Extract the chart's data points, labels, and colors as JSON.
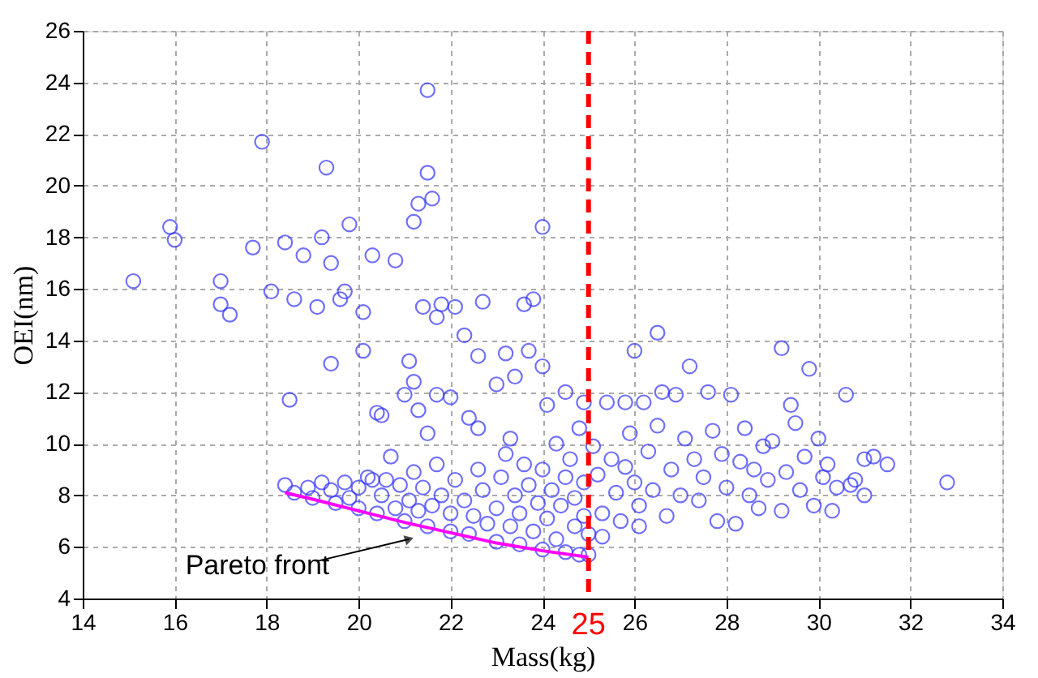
{
  "chart_data": {
    "type": "scatter",
    "xlabel": "Mass(kg)",
    "ylabel": "OEI(nm)",
    "xlim": [
      14,
      34
    ],
    "ylim": [
      4,
      26
    ],
    "xticks": [
      14,
      16,
      18,
      20,
      22,
      24,
      26,
      28,
      30,
      32,
      34
    ],
    "yticks": [
      4,
      6,
      8,
      10,
      12,
      14,
      16,
      18,
      20,
      22,
      24,
      26
    ],
    "grid": true,
    "series": [
      {
        "marker": "circle",
        "color": "#3333ff",
        "x": [
          15.1,
          15.9,
          16.0,
          17.0,
          17.0,
          17.2,
          17.7,
          17.9,
          18.1,
          18.4,
          18.5,
          18.6,
          18.8,
          19.1,
          19.2,
          19.3,
          19.4,
          19.4,
          19.6,
          19.7,
          19.8,
          20.1,
          20.1,
          20.3,
          20.4,
          20.5,
          20.8,
          21.0,
          21.1,
          21.2,
          21.2,
          21.3,
          21.4,
          21.5,
          21.5,
          21.6,
          21.5,
          21.7,
          21.8,
          22.0,
          22.1,
          22.3,
          22.4,
          22.6,
          22.7,
          23.0,
          23.2,
          23.4,
          23.3,
          23.7,
          23.6,
          23.8,
          24.0,
          24.0,
          24.1,
          24.5,
          24.8,
          24.9,
          21.3,
          21.7,
          22.6,
          20.7,
          20.3,
          18.4,
          18.6,
          18.9,
          19.0,
          19.2,
          19.4,
          19.5,
          19.7,
          19.8,
          20.0,
          20.0,
          20.2,
          20.4,
          20.5,
          20.6,
          20.8,
          20.9,
          21.0,
          21.1,
          21.2,
          21.3,
          21.4,
          21.5,
          21.6,
          21.7,
          21.8,
          22.0,
          22.0,
          22.1,
          22.3,
          22.4,
          22.5,
          22.6,
          22.7,
          22.8,
          23.0,
          23.0,
          23.1,
          23.2,
          23.3,
          23.4,
          23.5,
          23.5,
          23.6,
          23.7,
          23.8,
          23.9,
          24.0,
          24.0,
          24.1,
          24.2,
          24.3,
          24.3,
          24.4,
          24.5,
          24.5,
          24.6,
          24.7,
          24.7,
          24.8,
          24.9,
          24.9,
          25.0,
          25.0,
          25.1,
          25.2,
          25.3,
          25.3,
          25.4,
          25.5,
          25.6,
          25.7,
          25.8,
          25.8,
          25.9,
          26.0,
          26.0,
          26.1,
          26.1,
          26.3,
          26.4,
          26.5,
          26.5,
          26.6,
          26.7,
          26.8,
          26.9,
          27.0,
          27.1,
          27.2,
          27.3,
          27.4,
          27.5,
          27.7,
          27.8,
          27.9,
          28.0,
          28.1,
          28.2,
          28.3,
          28.4,
          28.5,
          28.7,
          28.8,
          28.9,
          29.0,
          29.2,
          29.2,
          29.3,
          29.4,
          29.5,
          29.6,
          29.7,
          29.8,
          29.9,
          30.0,
          30.1,
          30.2,
          30.3,
          30.4,
          30.6,
          30.8,
          31.0,
          31.0,
          31.2,
          31.5,
          32.8,
          26.2,
          27.6,
          28.6,
          30.7
        ],
        "values": [
          16.3,
          18.4,
          17.9,
          16.3,
          15.4,
          15.0,
          17.6,
          21.7,
          15.9,
          17.8,
          11.7,
          15.6,
          17.3,
          15.3,
          18.0,
          20.7,
          17.0,
          13.1,
          15.6,
          15.9,
          18.5,
          15.1,
          13.6,
          17.3,
          11.2,
          11.1,
          17.1,
          11.9,
          13.2,
          12.4,
          18.6,
          19.3,
          15.3,
          20.5,
          23.7,
          19.5,
          10.4,
          14.9,
          15.4,
          11.8,
          15.3,
          14.2,
          11.0,
          13.4,
          15.5,
          12.3,
          13.5,
          12.6,
          10.2,
          13.6,
          15.4,
          15.6,
          18.4,
          13.0,
          11.5,
          12.0,
          10.6,
          11.6,
          11.3,
          11.9,
          10.6,
          9.5,
          8.6,
          8.4,
          8.1,
          8.3,
          7.9,
          8.5,
          8.2,
          7.7,
          8.5,
          7.9,
          7.5,
          8.3,
          8.7,
          7.3,
          8.0,
          8.6,
          7.5,
          8.4,
          7.0,
          7.8,
          8.9,
          7.4,
          8.3,
          6.8,
          7.6,
          9.2,
          8.0,
          6.6,
          7.3,
          8.6,
          7.8,
          6.5,
          7.2,
          9.0,
          8.2,
          6.9,
          6.2,
          7.5,
          8.7,
          9.6,
          6.8,
          8.0,
          6.1,
          7.3,
          9.2,
          8.4,
          6.6,
          7.7,
          5.9,
          9.0,
          7.1,
          8.2,
          6.3,
          10.0,
          7.6,
          5.8,
          8.7,
          9.4,
          6.8,
          7.9,
          5.7,
          8.5,
          7.2,
          5.7,
          6.5,
          9.9,
          8.8,
          7.3,
          6.4,
          11.6,
          9.4,
          8.1,
          7.0,
          11.6,
          9.1,
          10.4,
          13.6,
          8.5,
          7.6,
          6.8,
          9.7,
          8.2,
          10.7,
          14.3,
          12.0,
          7.2,
          9.0,
          11.9,
          8.0,
          10.2,
          13.0,
          9.4,
          7.8,
          8.7,
          10.5,
          7.0,
          9.6,
          8.3,
          11.9,
          6.9,
          9.3,
          10.6,
          8.0,
          7.5,
          9.9,
          8.6,
          10.1,
          13.7,
          7.4,
          8.9,
          11.5,
          10.8,
          8.2,
          9.5,
          12.9,
          7.6,
          10.2,
          8.7,
          9.2,
          7.4,
          8.3,
          11.9,
          8.6,
          8.0,
          9.4,
          9.5,
          9.2,
          8.5,
          11.6,
          12.0,
          9.0,
          8.4
        ]
      },
      {
        "type": "line",
        "marker": "none",
        "color": "#ff00ff",
        "x": [
          18.4,
          19,
          20,
          21,
          22,
          23,
          24,
          25
        ],
        "values": [
          8.1,
          7.85,
          7.4,
          6.95,
          6.55,
          6.15,
          5.85,
          5.6
        ]
      }
    ],
    "ref_lines": [
      {
        "axis": "x",
        "value": 25,
        "label": "25",
        "color": "#ff0000",
        "line_style": "dashed"
      }
    ],
    "annotations": [
      {
        "text": "Pareto front",
        "x": 21.1,
        "y": 6.3
      }
    ]
  }
}
